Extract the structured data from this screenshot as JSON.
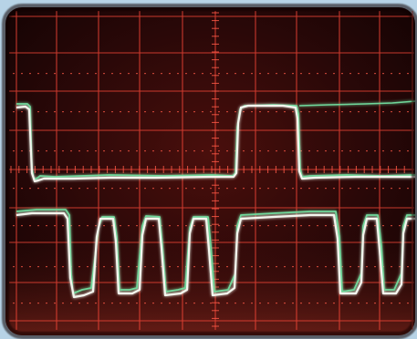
{
  "scene": {
    "subject": "oscilloscope-screen",
    "trace_count": 2
  },
  "colors": {
    "background_sky": "#b7d3e6",
    "screen_dark": "#1a0606",
    "screen_red": "#5a1410",
    "graticule": "#ff4a3a",
    "trace_white": "#f4f6f0",
    "trace_green": "#7ee0a0"
  }
}
